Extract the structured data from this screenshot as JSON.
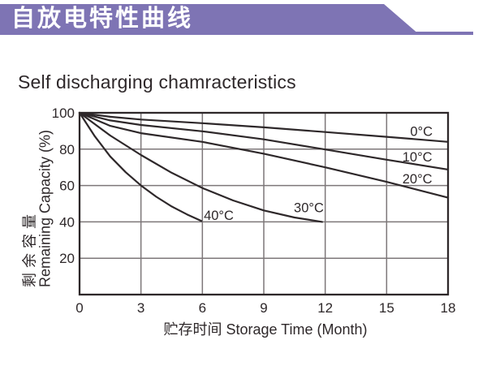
{
  "banner": {
    "title": "自放电特性曲线",
    "background_color": "#7e74b4",
    "text_color": "#ffffff"
  },
  "page_title": "Self discharging chamracteristics",
  "colors": {
    "ink": "#2e282a",
    "grid": "#7d7779",
    "background": "#ffffff"
  },
  "chart_data": {
    "type": "line",
    "title": "Self discharging chamracteristics",
    "xlabel": "贮存时间 Storage Time (Month)",
    "ylabel_line1": "剩余容量",
    "ylabel_line2": "Remaining Capacity (%)",
    "xlim": [
      0,
      18
    ],
    "ylim": [
      0,
      100
    ],
    "x_ticks": [
      0,
      3,
      6,
      9,
      12,
      15,
      18
    ],
    "y_ticks": [
      100,
      80,
      60,
      40,
      20
    ],
    "grid": true,
    "legend_position": "inline-labels",
    "series": [
      {
        "name": "0°C",
        "points": [
          [
            0,
            100
          ],
          [
            1.5,
            97.8
          ],
          [
            3,
            96.3
          ],
          [
            6,
            94.3
          ],
          [
            9,
            92
          ],
          [
            12,
            89.4
          ],
          [
            15,
            86.8
          ],
          [
            18,
            84
          ]
        ],
        "label": {
          "month": 16.7,
          "pct": 89.9
        }
      },
      {
        "name": "10°C",
        "points": [
          [
            0,
            100
          ],
          [
            1.5,
            95.8
          ],
          [
            3,
            93.3
          ],
          [
            6,
            89.8
          ],
          [
            9,
            85.4
          ],
          [
            12,
            79.8
          ],
          [
            15,
            74.2
          ],
          [
            18,
            68.8
          ]
        ],
        "label": {
          "month": 16.5,
          "pct": 75.8
        }
      },
      {
        "name": "20°C",
        "points": [
          [
            0,
            100
          ],
          [
            1.5,
            92.8
          ],
          [
            3,
            88.8
          ],
          [
            6,
            84
          ],
          [
            9,
            77.5
          ],
          [
            12,
            70
          ],
          [
            15,
            62
          ],
          [
            18,
            53.3
          ]
        ],
        "label": {
          "month": 16.5,
          "pct": 63.8
        }
      },
      {
        "name": "30°C",
        "points": [
          [
            0,
            100
          ],
          [
            1.5,
            87.5
          ],
          [
            3,
            76.8
          ],
          [
            4.5,
            67
          ],
          [
            6,
            58.6
          ],
          [
            7.5,
            51.8
          ],
          [
            9,
            46.3
          ],
          [
            10.5,
            42.4
          ],
          [
            11.85,
            40
          ]
        ],
        "label": {
          "month": 11.2,
          "pct": 47.9
        }
      },
      {
        "name": "40°C",
        "points": [
          [
            0,
            100
          ],
          [
            0.75,
            87
          ],
          [
            1.5,
            76
          ],
          [
            2.25,
            67.3
          ],
          [
            3,
            60
          ],
          [
            3.75,
            53.8
          ],
          [
            4.5,
            48.5
          ],
          [
            5.25,
            44.1
          ],
          [
            5.95,
            40.5
          ]
        ],
        "label": {
          "month": 6.8,
          "pct": 43.7
        }
      }
    ]
  }
}
